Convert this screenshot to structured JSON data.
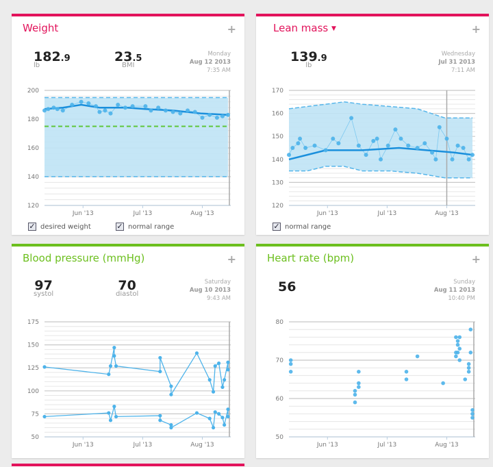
{
  "colors": {
    "pink": "#e2135b",
    "green": "#6cbf1e",
    "blue": "#2a9fe0",
    "band": "#bfe3f5"
  },
  "weight": {
    "title": "Weight",
    "add_icon": "+",
    "m1": {
      "int": "182",
      "dec": ".9",
      "unit": "lb"
    },
    "m2": {
      "int": "23",
      "dec": ".5",
      "unit": "BMI"
    },
    "date": {
      "day": "Monday",
      "date": "Aug 12 2013",
      "time": "7:35 AM"
    },
    "legend": [
      "desired weight",
      "normal range"
    ]
  },
  "lean": {
    "title": "Lean mass",
    "dropdown_icon": "▼",
    "add_icon": "+",
    "m1": {
      "int": "139",
      "dec": ".9",
      "unit": "lb"
    },
    "date": {
      "day": "Wednesday",
      "date": "Jul 31 2013",
      "time": "7:11 AM"
    },
    "legend": [
      "normal range"
    ]
  },
  "bp": {
    "title": "Blood pressure (mmHg)",
    "add_icon": "+",
    "m1": {
      "int": "97",
      "unit": "systol"
    },
    "m2": {
      "int": "70",
      "unit": "diastol"
    },
    "date": {
      "day": "Saturday",
      "date": "Aug 10 2013",
      "time": "9:43 AM"
    }
  },
  "hr": {
    "title": "Heart rate (bpm)",
    "add_icon": "+",
    "m1": {
      "int": "56"
    },
    "date": {
      "day": "Sunday",
      "date": "Aug 11 2013",
      "time": "10:40 PM"
    }
  },
  "chart_data": [
    {
      "type": "line",
      "name": "weight",
      "x_ticks": [
        "Jun '13",
        "Jul '13",
        "Aug '13"
      ],
      "ylim": [
        120,
        200
      ],
      "y_ticks": [
        120,
        140,
        160,
        180,
        200
      ],
      "desired": 175,
      "normal_range": [
        140,
        195
      ],
      "trend": [
        [
          0,
          187
        ],
        [
          10,
          188
        ],
        [
          20,
          190
        ],
        [
          30,
          188
        ],
        [
          45,
          188
        ],
        [
          55,
          187
        ],
        [
          70,
          186
        ],
        [
          85,
          184
        ],
        [
          100,
          183
        ]
      ],
      "points": [
        [
          0,
          186
        ],
        [
          2,
          187
        ],
        [
          5,
          188
        ],
        [
          7,
          187
        ],
        [
          10,
          186
        ],
        [
          15,
          190
        ],
        [
          20,
          192
        ],
        [
          24,
          191
        ],
        [
          28,
          189
        ],
        [
          30,
          185
        ],
        [
          33,
          186
        ],
        [
          36,
          184
        ],
        [
          40,
          190
        ],
        [
          44,
          188
        ],
        [
          48,
          189
        ],
        [
          55,
          189
        ],
        [
          58,
          186
        ],
        [
          62,
          188
        ],
        [
          66,
          186
        ],
        [
          70,
          185
        ],
        [
          74,
          184
        ],
        [
          78,
          186
        ],
        [
          82,
          185
        ],
        [
          86,
          181
        ],
        [
          90,
          183
        ],
        [
          94,
          181
        ],
        [
          97,
          182
        ],
        [
          100,
          183
        ]
      ]
    },
    {
      "type": "line",
      "name": "lean mass",
      "x_ticks": [
        "Jun '13",
        "Jul '13",
        "Aug '13"
      ],
      "ylim": [
        120,
        170
      ],
      "y_ticks": [
        120,
        130,
        140,
        150,
        160,
        170
      ],
      "upper": [
        [
          0,
          162
        ],
        [
          10,
          163
        ],
        [
          20,
          164
        ],
        [
          30,
          165
        ],
        [
          40,
          164
        ],
        [
          55,
          163
        ],
        [
          70,
          162
        ],
        [
          85,
          158
        ],
        [
          100,
          158
        ]
      ],
      "lower": [
        [
          0,
          135
        ],
        [
          10,
          135
        ],
        [
          20,
          137
        ],
        [
          30,
          137
        ],
        [
          40,
          135
        ],
        [
          55,
          135
        ],
        [
          70,
          134
        ],
        [
          85,
          132
        ],
        [
          100,
          132
        ]
      ],
      "trend": [
        [
          0,
          140
        ],
        [
          10,
          142
        ],
        [
          20,
          144
        ],
        [
          40,
          144
        ],
        [
          60,
          145
        ],
        [
          75,
          144
        ],
        [
          90,
          143
        ],
        [
          100,
          142
        ]
      ],
      "points": [
        [
          0,
          142
        ],
        [
          2,
          145
        ],
        [
          5,
          147
        ],
        [
          6,
          149
        ],
        [
          9,
          145
        ],
        [
          14,
          146
        ],
        [
          20,
          144
        ],
        [
          24,
          149
        ],
        [
          27,
          147
        ],
        [
          34,
          158
        ],
        [
          38,
          146
        ],
        [
          42,
          142
        ],
        [
          46,
          148
        ],
        [
          48,
          149
        ],
        [
          50,
          140
        ],
        [
          54,
          146
        ],
        [
          58,
          153
        ],
        [
          61,
          149
        ],
        [
          65,
          146
        ],
        [
          70,
          145
        ],
        [
          74,
          147
        ],
        [
          78,
          143
        ],
        [
          80,
          140
        ],
        [
          82,
          154
        ],
        [
          86,
          149
        ],
        [
          89,
          140
        ],
        [
          92,
          146
        ],
        [
          95,
          145
        ],
        [
          98,
          140
        ],
        [
          100,
          142
        ]
      ]
    },
    {
      "type": "line",
      "name": "blood pressure",
      "x_ticks": [
        "Jun '13",
        "Jul '13",
        "Aug '13"
      ],
      "ylim": [
        50,
        175
      ],
      "y_ticks": [
        50,
        75,
        100,
        125,
        150,
        175
      ],
      "series": [
        {
          "name": "systolic",
          "points": [
            [
              0,
              126
            ],
            [
              35,
              118
            ],
            [
              36,
              127
            ],
            [
              38,
              147
            ],
            [
              38,
              138
            ],
            [
              39,
              127
            ],
            [
              63,
              121
            ],
            [
              63,
              136
            ],
            [
              69,
              105
            ],
            [
              69,
              96
            ],
            [
              83,
              141
            ],
            [
              90,
              112
            ],
            [
              92,
              99
            ],
            [
              93,
              127
            ],
            [
              95,
              130
            ],
            [
              97,
              104
            ],
            [
              98,
              112
            ],
            [
              100,
              131
            ],
            [
              100,
              123
            ]
          ]
        },
        {
          "name": "diastolic",
          "points": [
            [
              0,
              72
            ],
            [
              35,
              76
            ],
            [
              36,
              68
            ],
            [
              38,
              83
            ],
            [
              39,
              72
            ],
            [
              63,
              73
            ],
            [
              63,
              68
            ],
            [
              69,
              63
            ],
            [
              69,
              60
            ],
            [
              83,
              76
            ],
            [
              90,
              70
            ],
            [
              92,
              60
            ],
            [
              93,
              77
            ],
            [
              95,
              75
            ],
            [
              97,
              71
            ],
            [
              98,
              63
            ],
            [
              100,
              80
            ],
            [
              100,
              72
            ]
          ]
        }
      ]
    },
    {
      "type": "scatter",
      "name": "heart rate",
      "x_ticks": [
        "Jun '13",
        "Jul '13",
        "Aug '13"
      ],
      "ylim": [
        50,
        80
      ],
      "y_ticks": [
        50,
        60,
        70,
        80
      ],
      "points": [
        [
          1,
          70
        ],
        [
          1,
          69
        ],
        [
          1,
          67
        ],
        [
          36,
          62
        ],
        [
          36,
          61
        ],
        [
          36,
          59
        ],
        [
          38,
          67
        ],
        [
          38,
          64
        ],
        [
          38,
          63
        ],
        [
          64,
          67
        ],
        [
          64,
          65
        ],
        [
          70,
          71
        ],
        [
          84,
          64
        ],
        [
          91,
          76
        ],
        [
          91,
          72
        ],
        [
          91,
          71
        ],
        [
          92,
          75
        ],
        [
          92,
          74
        ],
        [
          92,
          72
        ],
        [
          93,
          76
        ],
        [
          93,
          73
        ],
        [
          93,
          70
        ],
        [
          96,
          65
        ],
        [
          98,
          69
        ],
        [
          98,
          68
        ],
        [
          98,
          67
        ],
        [
          99,
          78
        ],
        [
          99,
          72
        ],
        [
          100,
          57
        ],
        [
          100,
          56
        ],
        [
          100,
          55
        ]
      ]
    }
  ]
}
